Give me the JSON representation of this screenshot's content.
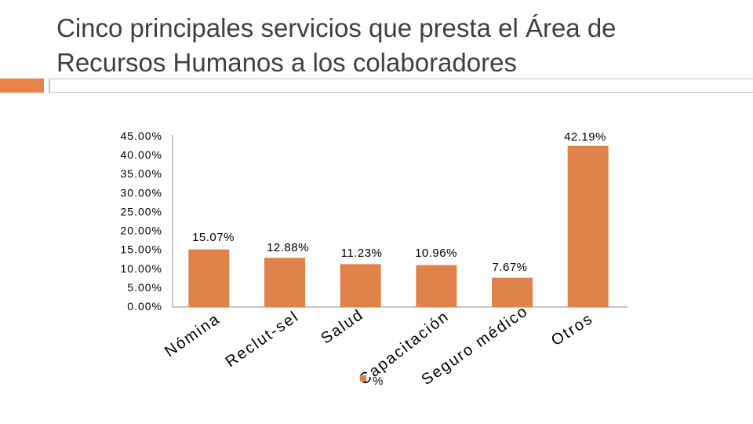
{
  "slide": {
    "title_line1": "Cinco principales servicios que presta el Área de",
    "title_line2": "Recursos Humanos a los colaboradores",
    "accent_color": "#e8844a",
    "rule_color": "#b8c6d9"
  },
  "chart_data": {
    "type": "bar",
    "title": "",
    "xlabel": "",
    "ylabel": "",
    "ylim": [
      0,
      45
    ],
    "yticks": [
      "45.00%",
      "40.00%",
      "35.00%",
      "30.00%",
      "25.00%",
      "20.00%",
      "15.00%",
      "10.00%",
      "5.00%",
      "0.00%"
    ],
    "categories": [
      "Nómina",
      "Reclut-sel",
      "Salud",
      "Capacitación",
      "Seguro médico",
      "Otros"
    ],
    "series": [
      {
        "name": "%",
        "values": [
          15.07,
          12.88,
          11.23,
          10.96,
          7.67,
          42.19
        ],
        "labels": [
          "15.07%",
          "12.88%",
          "11.23%",
          "10.96%",
          "7.67%",
          "42.19%"
        ],
        "color": "#e0834a"
      }
    ],
    "legend": "bottom",
    "legend_label": "%",
    "grid": false
  }
}
